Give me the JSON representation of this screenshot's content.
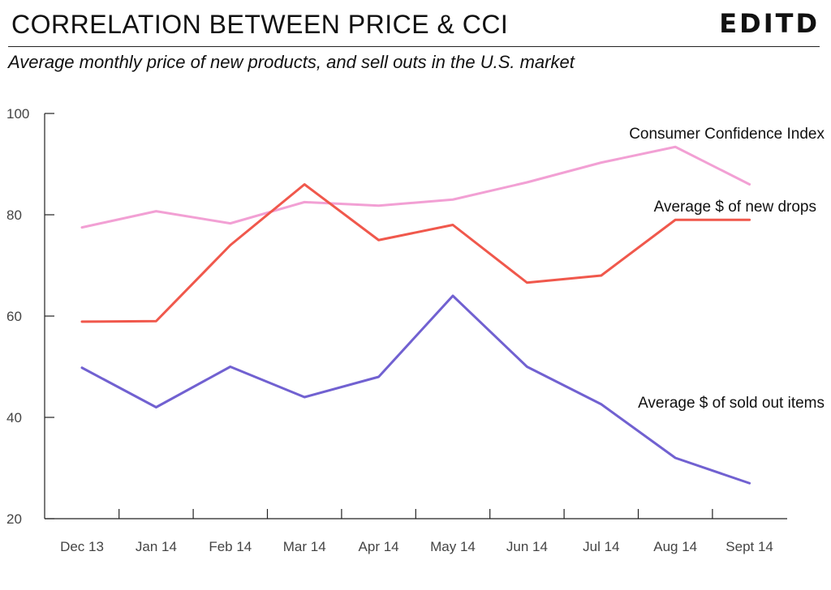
{
  "header": {
    "title": "CORRELATION BETWEEN PRICE & CCI",
    "brand": "EDITD",
    "subtitle": "Average monthly price of new products, and sell outs in the U.S. market"
  },
  "chart_data": {
    "type": "line",
    "title": "CORRELATION BETWEEN PRICE & CCI",
    "subtitle": "Average monthly price of new products, and sell outs in the U.S. market",
    "xlabel": "",
    "ylabel": "",
    "categories": [
      "Dec 13",
      "Jan 14",
      "Feb 14",
      "Mar 14",
      "Apr 14",
      "May 14",
      "Jun 14",
      "Jul 14",
      "Aug 14",
      "Sept 14"
    ],
    "ylim": [
      20,
      100
    ],
    "yticks": [
      20,
      40,
      60,
      80,
      100
    ],
    "grid": false,
    "legend": "inline labels",
    "series": [
      {
        "name": "Consumer Confidence Index",
        "color": "#f2a0d4",
        "values": [
          77.5,
          80.7,
          78.3,
          82.5,
          81.8,
          83.0,
          86.4,
          90.3,
          93.4,
          86.0
        ]
      },
      {
        "name": "Average $ of new drops",
        "color": "#f0584c",
        "values": [
          58.9,
          59.0,
          74.0,
          86.0,
          75.0,
          78.0,
          66.6,
          68.0,
          79.0,
          79.0
        ]
      },
      {
        "name": "Average $ of sold out items",
        "color": "#7161d1",
        "values": [
          49.8,
          42.0,
          50.0,
          44.0,
          48.0,
          64.0,
          50.0,
          42.6,
          32.0,
          27.0
        ]
      }
    ]
  }
}
